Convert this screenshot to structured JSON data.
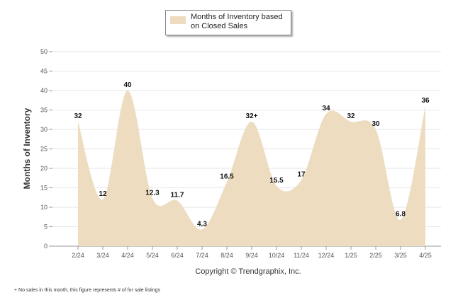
{
  "chart_data": {
    "type": "area",
    "categories": [
      "2/24",
      "3/24",
      "4/24",
      "5/24",
      "6/24",
      "7/24",
      "8/24",
      "9/24",
      "10/24",
      "11/24",
      "12/24",
      "1/25",
      "2/25",
      "3/25",
      "4/25"
    ],
    "series": [
      {
        "name": "Months of Inventory based on Closed Sales",
        "values": [
          32,
          12,
          40,
          12.3,
          11.7,
          4.3,
          16.5,
          32,
          15.5,
          17,
          34,
          32,
          30,
          6.8,
          36
        ],
        "labels": [
          "32",
          "12",
          "40",
          "12.3",
          "11.7",
          "4.3",
          "16.5",
          "32+",
          "15.5",
          "17",
          "34",
          "32",
          "30",
          "6.8",
          "36"
        ]
      }
    ],
    "ylabel": "Months of Inventory",
    "xlabel": "",
    "ylim": [
      0,
      50
    ],
    "yticks": [
      0,
      5,
      10,
      15,
      20,
      25,
      30,
      35,
      40,
      45,
      50
    ],
    "grid": true,
    "legend_position": "top-center",
    "fill_color": "#eddcc0",
    "grid_color": "#e6e6e6"
  },
  "legend": {
    "label": "Months of Inventory based on Closed Sales"
  },
  "copyright": "Copyright © Trendgraphix, Inc.",
  "footnote": "+  No sales in this month, this figure represents # of for sale listings"
}
